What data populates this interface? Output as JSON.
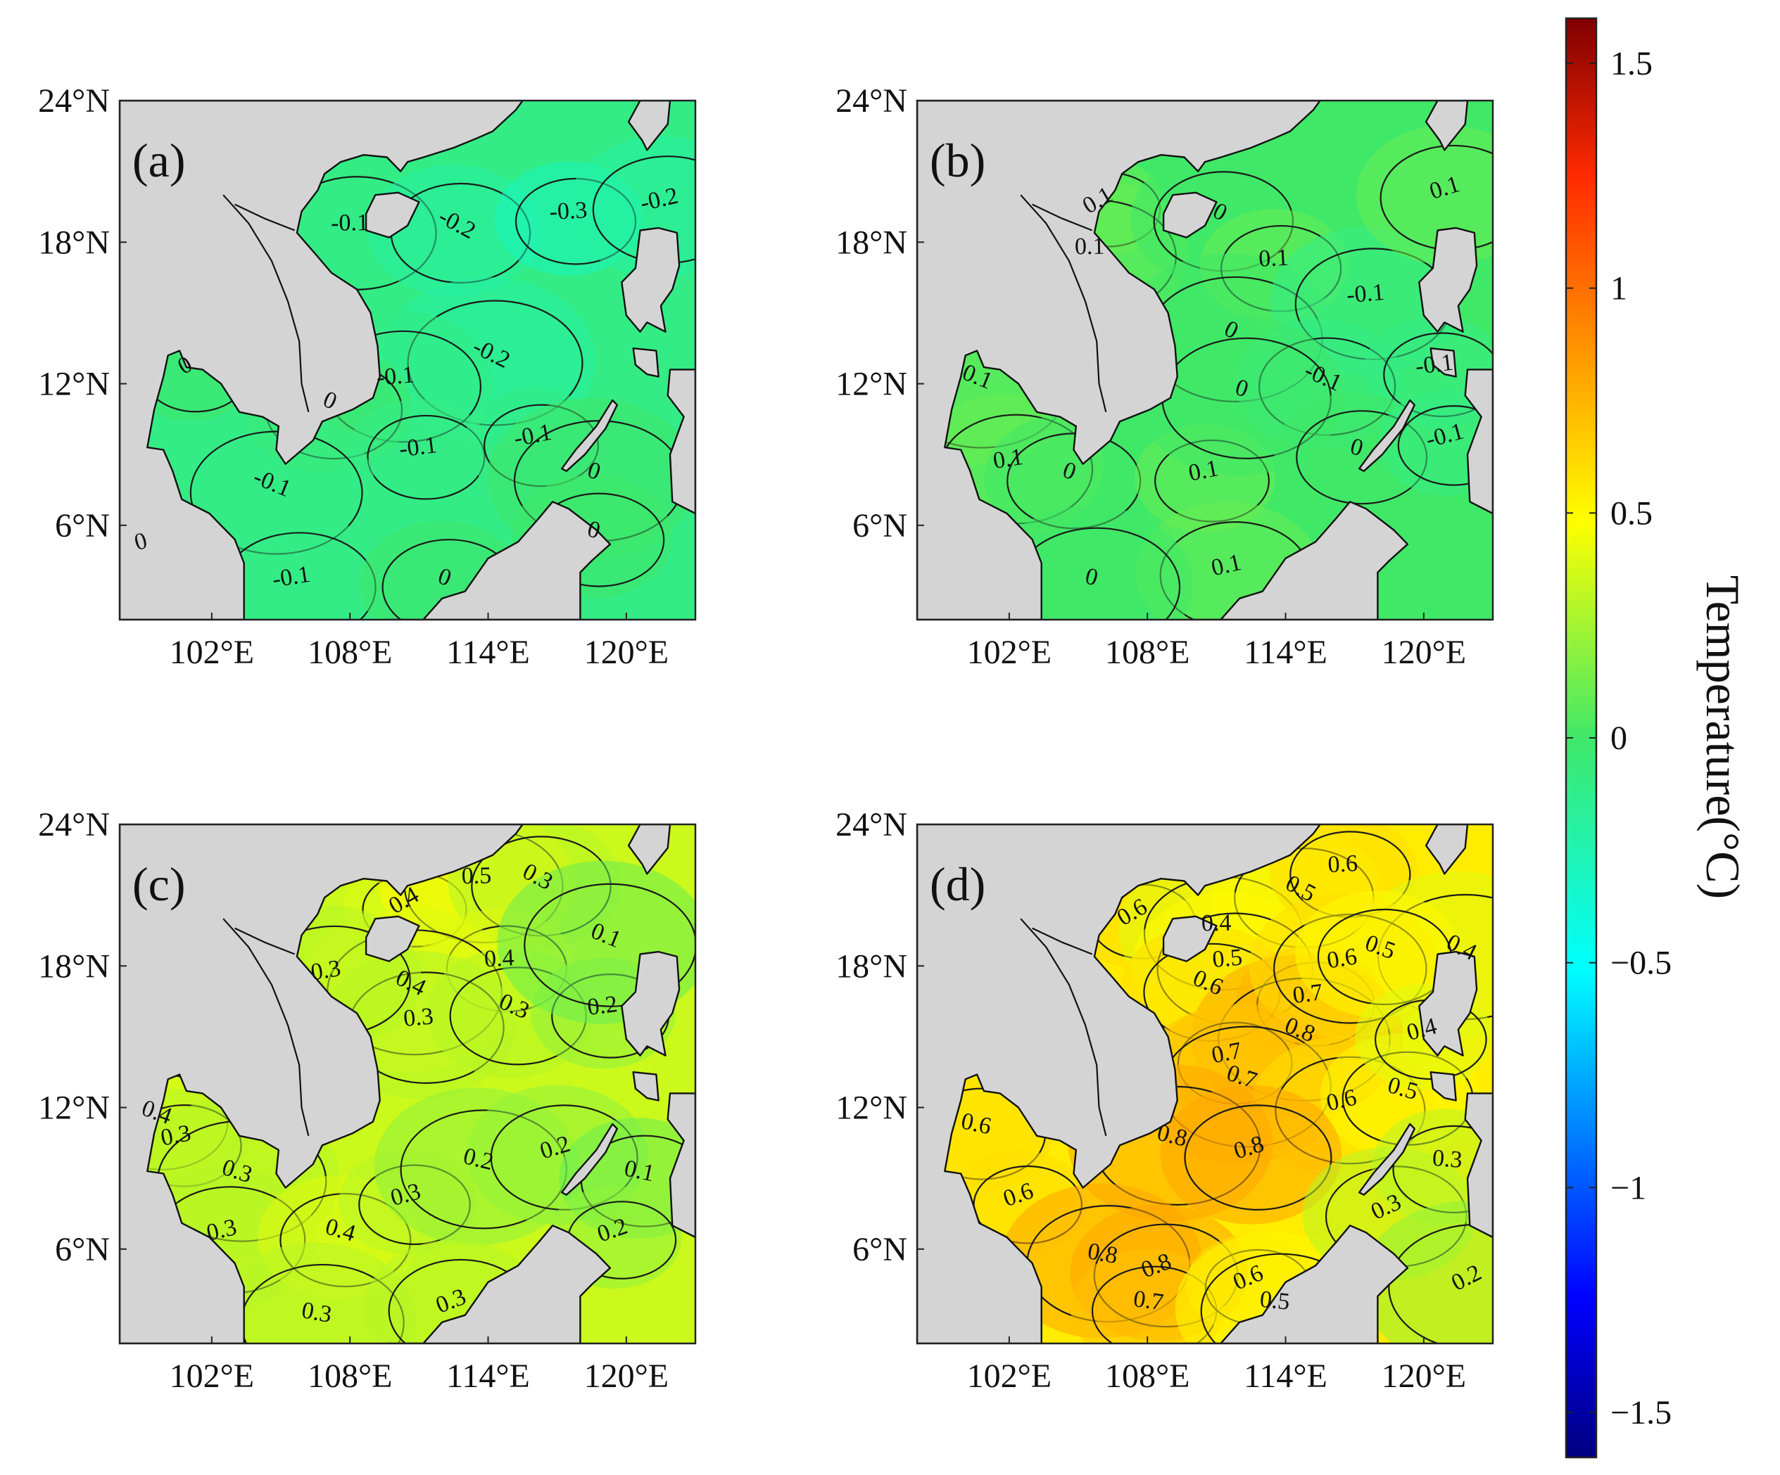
{
  "chart_data": {
    "type": "heatmap",
    "description": "Four map panels of temperature anomaly over the South China Sea region with contour lines",
    "colorbar": {
      "title": "Temperature(°C)",
      "range": [
        -1.6,
        1.6
      ],
      "ticks": [
        1.5,
        1,
        0.5,
        0,
        -0.5,
        -1,
        -1.5
      ],
      "tick_labels": [
        "1.5",
        "1",
        "0.5",
        "0",
        "−0.5",
        "−1",
        "−1.5"
      ]
    },
    "axes": {
      "lon_range": [
        98,
        123
      ],
      "lat_range": [
        2,
        24
      ],
      "x_ticks": [
        102,
        108,
        114,
        120
      ],
      "x_tick_labels": [
        "102°E",
        "108°E",
        "114°E",
        "120°E"
      ],
      "y_ticks": [
        24,
        18,
        12,
        6
      ],
      "y_tick_labels": [
        "24°N",
        "18°N",
        "12°N",
        "6°N"
      ]
    },
    "panels": [
      {
        "label": "(a)",
        "base_value": -0.1,
        "contour_labels": [
          {
            "text": "0",
            "lon": 101.0,
            "lat": 12.5
          },
          {
            "text": "-0.1",
            "lon": 108.0,
            "lat": 18.5
          },
          {
            "text": "-0.2",
            "lon": 112.5,
            "lat": 18.5
          },
          {
            "text": "-0.3",
            "lon": 117.5,
            "lat": 19.0
          },
          {
            "text": "-0.2",
            "lon": 114.0,
            "lat": 13.0
          },
          {
            "text": "-0.1",
            "lon": 110.0,
            "lat": 12.0
          },
          {
            "text": "0",
            "lon": 107.0,
            "lat": 11.0
          },
          {
            "text": "-0.1",
            "lon": 111.0,
            "lat": 9.0
          },
          {
            "text": "-0.1",
            "lon": 104.5,
            "lat": 7.5
          },
          {
            "text": "-0.1",
            "lon": 105.5,
            "lat": 3.5
          },
          {
            "text": "0",
            "lon": 112.0,
            "lat": 3.5
          },
          {
            "text": "-0.1",
            "lon": 116.0,
            "lat": 9.5
          },
          {
            "text": "0",
            "lon": 118.5,
            "lat": 8.0
          },
          {
            "text": "-0.2",
            "lon": 121.5,
            "lat": 19.5
          },
          {
            "text": "0",
            "lon": 118.5,
            "lat": 5.5
          },
          {
            "text": "0",
            "lon": 99.0,
            "lat": 5.0
          }
        ]
      },
      {
        "label": "(b)",
        "base_value": 0.0,
        "contour_labels": [
          {
            "text": "0.1",
            "lon": 106.0,
            "lat": 19.5
          },
          {
            "text": "0.1",
            "lon": 105.5,
            "lat": 17.5
          },
          {
            "text": "0",
            "lon": 111.0,
            "lat": 19.0
          },
          {
            "text": "0.1",
            "lon": 113.5,
            "lat": 17.0
          },
          {
            "text": "0",
            "lon": 111.5,
            "lat": 14.0
          },
          {
            "text": "-0.1",
            "lon": 117.5,
            "lat": 15.5
          },
          {
            "text": "-0.1",
            "lon": 115.5,
            "lat": 12.0
          },
          {
            "text": "-0.1",
            "lon": 120.5,
            "lat": 12.5
          },
          {
            "text": "0.1",
            "lon": 100.5,
            "lat": 12.0
          },
          {
            "text": "0.1",
            "lon": 102.0,
            "lat": 8.5
          },
          {
            "text": "0",
            "lon": 104.5,
            "lat": 8.0
          },
          {
            "text": "0.1",
            "lon": 110.5,
            "lat": 8.0
          },
          {
            "text": "0",
            "lon": 112.0,
            "lat": 11.5
          },
          {
            "text": "0.1",
            "lon": 111.5,
            "lat": 4.0
          },
          {
            "text": "0",
            "lon": 117.0,
            "lat": 9.0
          },
          {
            "text": "-0.1",
            "lon": 121.0,
            "lat": 9.5
          },
          {
            "text": "0",
            "lon": 105.5,
            "lat": 3.5
          },
          {
            "text": "0.1",
            "lon": 121.0,
            "lat": 20.0
          }
        ]
      },
      {
        "label": "(c)",
        "base_value": 0.35,
        "contour_labels": [
          {
            "text": "0.4",
            "lon": 110.5,
            "lat": 20.5
          },
          {
            "text": "0.5",
            "lon": 113.5,
            "lat": 21.5
          },
          {
            "text": "0.3",
            "lon": 116.0,
            "lat": 21.5
          },
          {
            "text": "0.4",
            "lon": 114.5,
            "lat": 18.0
          },
          {
            "text": "0.4",
            "lon": 110.5,
            "lat": 17.0
          },
          {
            "text": "0.3",
            "lon": 111.0,
            "lat": 15.5
          },
          {
            "text": "0.3",
            "lon": 115.0,
            "lat": 16.0
          },
          {
            "text": "0.2",
            "lon": 119.0,
            "lat": 16.0
          },
          {
            "text": "0.1",
            "lon": 119.0,
            "lat": 19.0
          },
          {
            "text": "0.3",
            "lon": 107.0,
            "lat": 17.5
          },
          {
            "text": "0.4",
            "lon": 99.5,
            "lat": 11.5
          },
          {
            "text": "0.3",
            "lon": 100.5,
            "lat": 10.5
          },
          {
            "text": "0.3",
            "lon": 103.0,
            "lat": 9.0
          },
          {
            "text": "0.3",
            "lon": 102.5,
            "lat": 6.5
          },
          {
            "text": "0.4",
            "lon": 107.5,
            "lat": 6.5
          },
          {
            "text": "0.3",
            "lon": 110.5,
            "lat": 8.0
          },
          {
            "text": "0.2",
            "lon": 113.5,
            "lat": 9.5
          },
          {
            "text": "0.2",
            "lon": 117.0,
            "lat": 10.0
          },
          {
            "text": "0.1",
            "lon": 120.5,
            "lat": 9.0
          },
          {
            "text": "0.2",
            "lon": 119.5,
            "lat": 6.5
          },
          {
            "text": "0.3",
            "lon": 106.5,
            "lat": 3.0
          },
          {
            "text": "0.3",
            "lon": 112.5,
            "lat": 3.5
          }
        ]
      },
      {
        "label": "(d)",
        "base_value": 0.55,
        "contour_labels": [
          {
            "text": "0.6",
            "lon": 107.5,
            "lat": 20.0
          },
          {
            "text": "0.4",
            "lon": 111.0,
            "lat": 19.5
          },
          {
            "text": "0.5",
            "lon": 114.5,
            "lat": 21.0
          },
          {
            "text": "0.6",
            "lon": 116.5,
            "lat": 22.0
          },
          {
            "text": "0.4",
            "lon": 121.5,
            "lat": 18.5
          },
          {
            "text": "0.5",
            "lon": 111.5,
            "lat": 18.0
          },
          {
            "text": "0.6",
            "lon": 110.5,
            "lat": 17.0
          },
          {
            "text": "0.7",
            "lon": 115.0,
            "lat": 16.5
          },
          {
            "text": "0.8",
            "lon": 114.5,
            "lat": 15.0
          },
          {
            "text": "0.6",
            "lon": 116.5,
            "lat": 18.0
          },
          {
            "text": "0.5",
            "lon": 118.0,
            "lat": 18.5
          },
          {
            "text": "0.7",
            "lon": 111.5,
            "lat": 14.0
          },
          {
            "text": "0.7",
            "lon": 112.0,
            "lat": 13.0
          },
          {
            "text": "0.6",
            "lon": 116.5,
            "lat": 12.0
          },
          {
            "text": "0.5",
            "lon": 119.0,
            "lat": 12.5
          },
          {
            "text": "0.4",
            "lon": 120.0,
            "lat": 15.0
          },
          {
            "text": "0.8",
            "lon": 109.0,
            "lat": 10.5
          },
          {
            "text": "0.8",
            "lon": 112.5,
            "lat": 10.0
          },
          {
            "text": "0.6",
            "lon": 100.5,
            "lat": 11.0
          },
          {
            "text": "0.6",
            "lon": 102.5,
            "lat": 8.0
          },
          {
            "text": "0.8",
            "lon": 106.0,
            "lat": 5.5
          },
          {
            "text": "0.8",
            "lon": 108.5,
            "lat": 5.0
          },
          {
            "text": "0.7",
            "lon": 108.0,
            "lat": 3.5
          },
          {
            "text": "0.6",
            "lon": 112.5,
            "lat": 4.5
          },
          {
            "text": "0.5",
            "lon": 113.5,
            "lat": 3.5
          },
          {
            "text": "0.3",
            "lon": 118.5,
            "lat": 7.5
          },
          {
            "text": "0.3",
            "lon": 121.0,
            "lat": 9.5
          },
          {
            "text": "0.2",
            "lon": 122.0,
            "lat": 4.5
          }
        ]
      }
    ]
  }
}
